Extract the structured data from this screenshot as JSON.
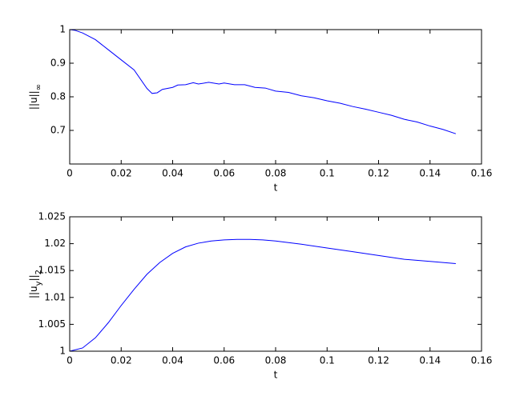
{
  "chart_data": [
    {
      "type": "line",
      "xlabel": "t",
      "ylabel_parts": [
        {
          "text": "||u||"
        },
        {
          "text": "∞",
          "sub": true
        }
      ],
      "xlim": [
        0,
        0.16
      ],
      "xticks": [
        0,
        0.02,
        0.04,
        0.06,
        0.08,
        0.1,
        0.12,
        0.14,
        0.16
      ],
      "ylim": [
        0.6,
        1
      ],
      "yticks": [
        0.7,
        0.8,
        0.9,
        1
      ],
      "color": "#0000ff",
      "x": [
        0,
        0.002,
        0.005,
        0.01,
        0.015,
        0.02,
        0.025,
        0.03,
        0.032,
        0.034,
        0.036,
        0.04,
        0.042,
        0.045,
        0.048,
        0.05,
        0.054,
        0.058,
        0.06,
        0.064,
        0.068,
        0.072,
        0.076,
        0.08,
        0.085,
        0.09,
        0.095,
        0.1,
        0.105,
        0.11,
        0.115,
        0.12,
        0.125,
        0.13,
        0.135,
        0.14,
        0.145,
        0.15
      ],
      "values": [
        1.0,
        0.998,
        0.99,
        0.97,
        0.94,
        0.91,
        0.88,
        0.825,
        0.81,
        0.812,
        0.822,
        0.828,
        0.835,
        0.836,
        0.842,
        0.838,
        0.843,
        0.838,
        0.841,
        0.836,
        0.836,
        0.828,
        0.826,
        0.817,
        0.813,
        0.803,
        0.797,
        0.788,
        0.781,
        0.771,
        0.763,
        0.754,
        0.745,
        0.733,
        0.725,
        0.713,
        0.703,
        0.69
      ]
    },
    {
      "type": "line",
      "xlabel": "t",
      "ylabel_parts": [
        {
          "text": "||u"
        },
        {
          "text": "y",
          "sub": true
        },
        {
          "text": "||"
        },
        {
          "text": "2",
          "sub": true
        }
      ],
      "xlim": [
        0,
        0.16
      ],
      "xticks": [
        0,
        0.02,
        0.04,
        0.06,
        0.08,
        0.1,
        0.12,
        0.14,
        0.16
      ],
      "ylim": [
        1,
        1.025
      ],
      "yticks": [
        1,
        1.005,
        1.01,
        1.015,
        1.02,
        1.025
      ],
      "color": "#0000ff",
      "x": [
        0,
        0.005,
        0.01,
        0.015,
        0.02,
        0.025,
        0.03,
        0.035,
        0.04,
        0.045,
        0.05,
        0.055,
        0.06,
        0.065,
        0.07,
        0.075,
        0.08,
        0.09,
        0.1,
        0.11,
        0.12,
        0.13,
        0.14,
        0.15
      ],
      "values": [
        1.0,
        1.0006,
        1.0025,
        1.0053,
        1.0085,
        1.0115,
        1.0143,
        1.0165,
        1.0182,
        1.0194,
        1.0201,
        1.0205,
        1.0207,
        1.0208,
        1.0208,
        1.0207,
        1.0205,
        1.0199,
        1.0192,
        1.0185,
        1.0178,
        1.0171,
        1.0167,
        1.0163
      ]
    }
  ]
}
